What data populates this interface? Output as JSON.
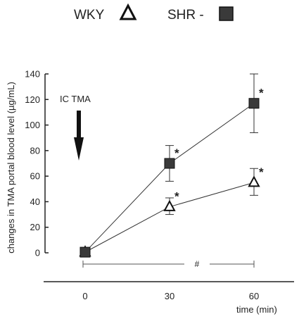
{
  "chart_data": {
    "type": "line",
    "x": [
      0,
      30,
      60
    ],
    "series": [
      {
        "name": "WKY",
        "marker": "open-triangle",
        "y": [
          0.5,
          36,
          55
        ],
        "err_plus": [
          0,
          7,
          11
        ],
        "err_minus": [
          0,
          6,
          10
        ],
        "sig_labels": [
          "",
          "*",
          "*"
        ]
      },
      {
        "name": "SHR -",
        "marker": "filled-square",
        "y": [
          0.5,
          70,
          117
        ],
        "err_plus": [
          0,
          14,
          23
        ],
        "err_minus": [
          0,
          14,
          23
        ],
        "sig_labels": [
          "",
          "*",
          "*"
        ]
      }
    ],
    "ylabel": "changes in TMA portal blood level (µg/mL)",
    "xlabel": "time (min)",
    "ylim": [
      0,
      140
    ],
    "yticks": [
      0,
      20,
      40,
      60,
      80,
      100,
      120,
      140
    ],
    "xticks": [
      0,
      30,
      60
    ],
    "annotation": {
      "text": "IC TMA",
      "arrow": "down"
    },
    "bracket_label": "#",
    "legend_position": "top",
    "colors": {
      "line": "#333333",
      "square_fill": "#3a3a3a",
      "axis": "#222222"
    }
  }
}
